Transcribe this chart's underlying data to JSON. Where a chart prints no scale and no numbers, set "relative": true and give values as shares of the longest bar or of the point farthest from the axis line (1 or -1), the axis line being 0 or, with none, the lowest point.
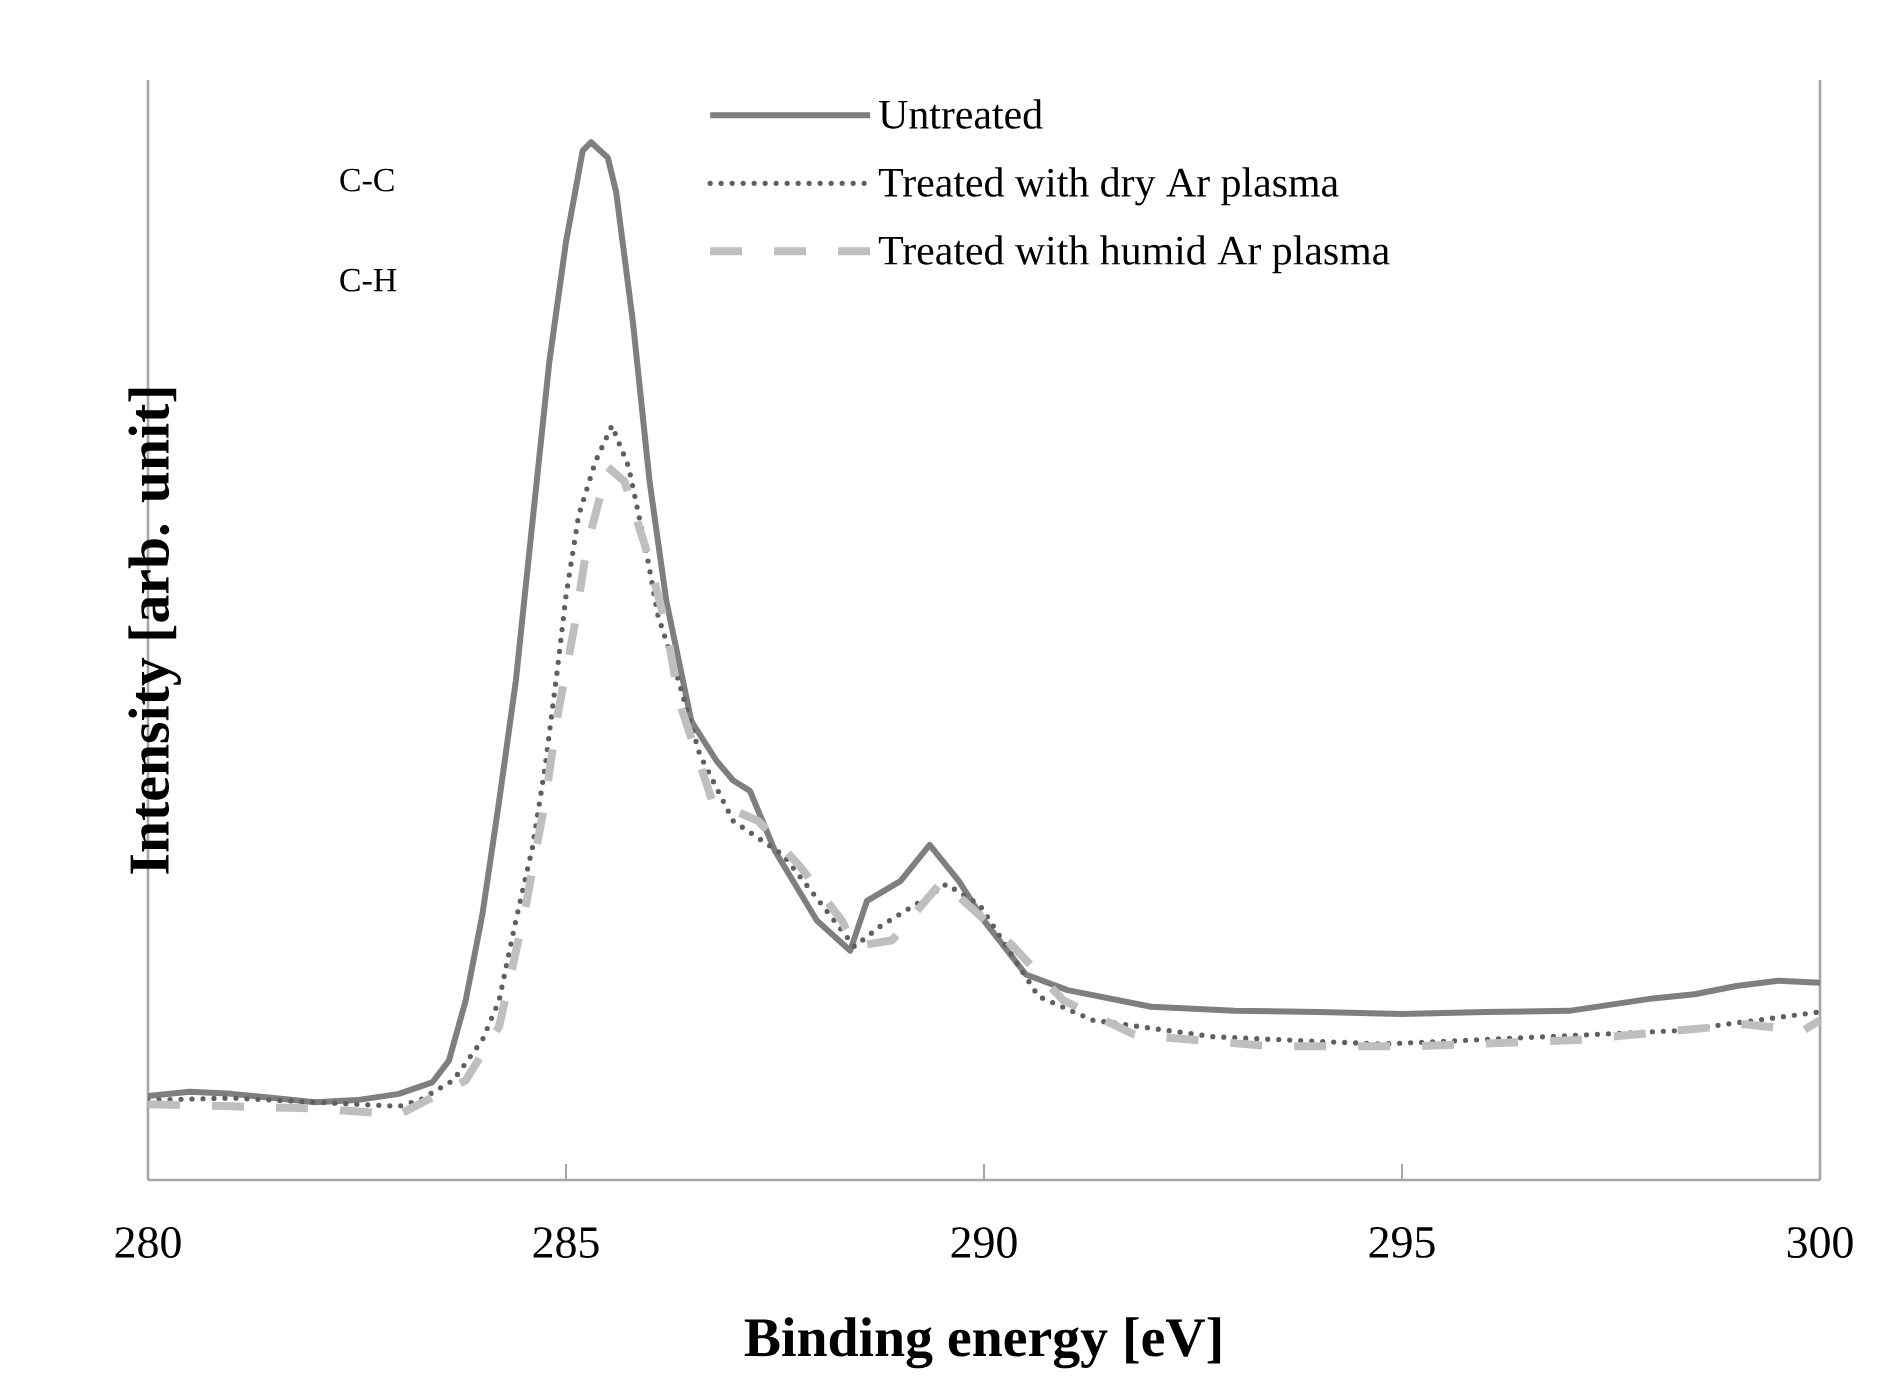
{
  "chart_data": {
    "type": "line",
    "relative": true,
    "xlabel": "Binding energy [eV]",
    "ylabel": "Intensity [arb. unit]",
    "xlim": [
      280,
      300
    ],
    "xticks": [
      280,
      285,
      290,
      295,
      300
    ],
    "tick_labels": "x",
    "legend": "top right",
    "grid": false,
    "annotations": [
      "C-C",
      "C-H"
    ],
    "series": [
      {
        "name": "Untreated",
        "color": "#7f7f7f",
        "line_style": "solid",
        "x": [
          280.0,
          280.5,
          281.0,
          281.5,
          282.0,
          282.5,
          283.0,
          283.4,
          283.6,
          283.8,
          284.0,
          284.2,
          284.4,
          284.6,
          284.8,
          285.0,
          285.2,
          285.3,
          285.5,
          285.6,
          285.8,
          286.0,
          286.2,
          286.5,
          286.8,
          287.0,
          287.2,
          287.5,
          288.0,
          288.4,
          288.6,
          289.0,
          289.35,
          289.7,
          290.0,
          290.5,
          291.0,
          292.0,
          293.0,
          294.0,
          295.0,
          296.0,
          297.0,
          298.0,
          298.5,
          299.0,
          299.5,
          300.0
        ],
        "values": [
          0.081,
          0.085,
          0.083,
          0.079,
          0.075,
          0.077,
          0.083,
          0.094,
          0.115,
          0.173,
          0.256,
          0.365,
          0.481,
          0.635,
          0.788,
          0.904,
          0.992,
          1.0,
          0.985,
          0.952,
          0.827,
          0.673,
          0.558,
          0.442,
          0.404,
          0.385,
          0.375,
          0.317,
          0.25,
          0.221,
          0.269,
          0.288,
          0.323,
          0.288,
          0.25,
          0.198,
          0.183,
          0.167,
          0.163,
          0.162,
          0.16,
          0.162,
          0.163,
          0.175,
          0.179,
          0.187,
          0.192,
          0.19
        ]
      },
      {
        "name": "Treated with dry Ar plasma",
        "color": "#5f5f5f",
        "line_style": "dotted",
        "x": [
          280.0,
          281.0,
          282.0,
          283.0,
          283.25,
          283.65,
          284.0,
          284.2,
          284.4,
          284.6,
          284.75,
          284.9,
          285.0,
          285.15,
          285.35,
          285.55,
          285.75,
          285.95,
          286.1,
          286.3,
          286.6,
          287.0,
          287.6,
          288.45,
          288.75,
          289.25,
          289.55,
          289.95,
          290.65,
          291.3,
          292.75,
          294.75,
          296.7,
          298.3,
          300.0
        ],
        "values": [
          0.077,
          0.079,
          0.075,
          0.071,
          0.077,
          0.096,
          0.135,
          0.173,
          0.25,
          0.321,
          0.398,
          0.494,
          0.563,
          0.64,
          0.692,
          0.727,
          0.687,
          0.61,
          0.544,
          0.494,
          0.41,
          0.346,
          0.313,
          0.225,
          0.244,
          0.269,
          0.285,
          0.265,
          0.177,
          0.154,
          0.138,
          0.131,
          0.138,
          0.144,
          0.162
        ]
      },
      {
        "name": "Treated with humid Ar plasma",
        "color": "#bfbfbf",
        "line_style": "dashed",
        "x": [
          280.0,
          281.0,
          282.0,
          283.0,
          283.8,
          284.2,
          284.5,
          284.75,
          284.9,
          285.1,
          285.25,
          285.5,
          285.7,
          285.95,
          286.2,
          286.35,
          286.75,
          287.3,
          287.8,
          288.3,
          288.45,
          288.9,
          289.5,
          290.35,
          290.95,
          291.8,
          293.4,
          295.2,
          297.1,
          299.1,
          299.8,
          300.0
        ],
        "values": [
          0.073,
          0.071,
          0.069,
          0.063,
          0.096,
          0.148,
          0.256,
          0.365,
          0.448,
          0.533,
          0.61,
          0.687,
          0.673,
          0.61,
          0.533,
          0.462,
          0.365,
          0.346,
          0.302,
          0.25,
          0.225,
          0.231,
          0.288,
          0.225,
          0.173,
          0.14,
          0.129,
          0.129,
          0.135,
          0.15,
          0.144,
          0.154
        ]
      }
    ]
  }
}
